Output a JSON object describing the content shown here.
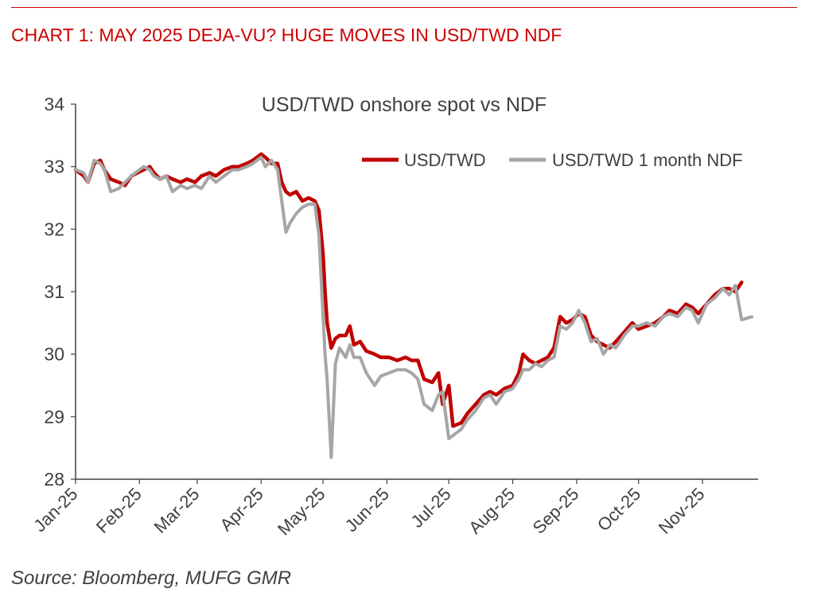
{
  "header": {
    "title": "CHART 1: MAY 2025 DEJA-VU? HUGE MOVES IN USD/TWD NDF"
  },
  "footer": {
    "source": "Source: Bloomberg, MUFG GMR"
  },
  "colors": {
    "accent": "#cc0000",
    "spot": "#c00000",
    "ndf": "#a6a6a6",
    "axis": "#404040"
  },
  "chart_data": {
    "type": "line",
    "title": "USD/TWD onshore spot vs NDF",
    "xlabel": "",
    "ylabel": "",
    "ylim": [
      28,
      34
    ],
    "yticks": [
      "28",
      "29",
      "30",
      "31",
      "32",
      "33",
      "34"
    ],
    "xlim": [
      "2025-01-01",
      "2025-11-28"
    ],
    "xticks": [
      {
        "label": "Jan-25",
        "date": "2025-01-01"
      },
      {
        "label": "Feb-25",
        "date": "2025-02-01"
      },
      {
        "label": "Mar-25",
        "date": "2025-03-01"
      },
      {
        "label": "Apr-25",
        "date": "2025-04-01"
      },
      {
        "label": "May-25",
        "date": "2025-05-01"
      },
      {
        "label": "Jun-25",
        "date": "2025-06-01"
      },
      {
        "label": "Jul-25",
        "date": "2025-07-01"
      },
      {
        "label": "Aug-25",
        "date": "2025-08-01"
      },
      {
        "label": "Sep-25",
        "date": "2025-09-01"
      },
      {
        "label": "Oct-25",
        "date": "2025-10-01"
      },
      {
        "label": "Nov-25",
        "date": "2025-11-01"
      }
    ],
    "grid": false,
    "legend": "top-right",
    "series": [
      {
        "name": "USD/TWD",
        "color": "#c00000",
        "points": [
          [
            "2025-01-01",
            32.95
          ],
          [
            "2025-01-05",
            32.85
          ],
          [
            "2025-01-07",
            32.75
          ],
          [
            "2025-01-10",
            33.05
          ],
          [
            "2025-01-13",
            33.1
          ],
          [
            "2025-01-15",
            32.95
          ],
          [
            "2025-01-18",
            32.8
          ],
          [
            "2025-01-22",
            32.75
          ],
          [
            "2025-01-25",
            32.7
          ],
          [
            "2025-01-28",
            32.85
          ],
          [
            "2025-02-03",
            32.95
          ],
          [
            "2025-02-06",
            33.0
          ],
          [
            "2025-02-08",
            32.9
          ],
          [
            "2025-02-11",
            32.8
          ],
          [
            "2025-02-14",
            32.85
          ],
          [
            "2025-02-17",
            32.8
          ],
          [
            "2025-02-21",
            32.75
          ],
          [
            "2025-02-24",
            32.8
          ],
          [
            "2025-02-28",
            32.75
          ],
          [
            "2025-03-03",
            32.85
          ],
          [
            "2025-03-07",
            32.9
          ],
          [
            "2025-03-10",
            32.85
          ],
          [
            "2025-03-14",
            32.95
          ],
          [
            "2025-03-18",
            33.0
          ],
          [
            "2025-03-21",
            33.0
          ],
          [
            "2025-03-25",
            33.05
          ],
          [
            "2025-03-28",
            33.1
          ],
          [
            "2025-04-01",
            33.2
          ],
          [
            "2025-04-03",
            33.15
          ],
          [
            "2025-04-06",
            33.05
          ],
          [
            "2025-04-09",
            33.05
          ],
          [
            "2025-04-11",
            32.75
          ],
          [
            "2025-04-13",
            32.6
          ],
          [
            "2025-04-15",
            32.55
          ],
          [
            "2025-04-18",
            32.6
          ],
          [
            "2025-04-21",
            32.45
          ],
          [
            "2025-04-24",
            32.5
          ],
          [
            "2025-04-27",
            32.45
          ],
          [
            "2025-04-29",
            32.3
          ],
          [
            "2025-05-01",
            31.6
          ],
          [
            "2025-05-02",
            31.0
          ],
          [
            "2025-05-03",
            30.5
          ],
          [
            "2025-05-05",
            30.1
          ],
          [
            "2025-05-07",
            30.25
          ],
          [
            "2025-05-09",
            30.3
          ],
          [
            "2025-05-12",
            30.3
          ],
          [
            "2025-05-14",
            30.45
          ],
          [
            "2025-05-16",
            30.15
          ],
          [
            "2025-05-19",
            30.2
          ],
          [
            "2025-05-22",
            30.05
          ],
          [
            "2025-05-26",
            30.0
          ],
          [
            "2025-05-29",
            29.95
          ],
          [
            "2025-06-02",
            29.95
          ],
          [
            "2025-06-06",
            29.9
          ],
          [
            "2025-06-10",
            29.95
          ],
          [
            "2025-06-13",
            29.9
          ],
          [
            "2025-06-16",
            29.9
          ],
          [
            "2025-06-19",
            29.6
          ],
          [
            "2025-06-23",
            29.55
          ],
          [
            "2025-06-26",
            29.7
          ],
          [
            "2025-06-28",
            29.2
          ],
          [
            "2025-07-01",
            29.5
          ],
          [
            "2025-07-03",
            28.85
          ],
          [
            "2025-07-07",
            28.9
          ],
          [
            "2025-07-10",
            29.05
          ],
          [
            "2025-07-14",
            29.2
          ],
          [
            "2025-07-18",
            29.35
          ],
          [
            "2025-07-21",
            29.4
          ],
          [
            "2025-07-24",
            29.35
          ],
          [
            "2025-07-28",
            29.45
          ],
          [
            "2025-08-01",
            29.5
          ],
          [
            "2025-08-04",
            29.7
          ],
          [
            "2025-08-06",
            30.0
          ],
          [
            "2025-08-09",
            29.9
          ],
          [
            "2025-08-12",
            29.85
          ],
          [
            "2025-08-15",
            29.9
          ],
          [
            "2025-08-18",
            29.95
          ],
          [
            "2025-08-21",
            30.1
          ],
          [
            "2025-08-24",
            30.6
          ],
          [
            "2025-08-27",
            30.5
          ],
          [
            "2025-08-30",
            30.55
          ],
          [
            "2025-09-02",
            30.65
          ],
          [
            "2025-09-05",
            30.6
          ],
          [
            "2025-09-08",
            30.3
          ],
          [
            "2025-09-11",
            30.2
          ],
          [
            "2025-09-14",
            30.15
          ],
          [
            "2025-09-17",
            30.1
          ],
          [
            "2025-09-20",
            30.2
          ],
          [
            "2025-09-24",
            30.35
          ],
          [
            "2025-09-28",
            30.5
          ],
          [
            "2025-10-01",
            30.4
          ],
          [
            "2025-10-05",
            30.45
          ],
          [
            "2025-10-09",
            30.5
          ],
          [
            "2025-10-13",
            30.6
          ],
          [
            "2025-10-16",
            30.7
          ],
          [
            "2025-10-20",
            30.65
          ],
          [
            "2025-10-24",
            30.8
          ],
          [
            "2025-10-27",
            30.75
          ],
          [
            "2025-10-30",
            30.65
          ],
          [
            "2025-11-03",
            30.8
          ],
          [
            "2025-11-07",
            30.95
          ],
          [
            "2025-11-11",
            31.05
          ],
          [
            "2025-11-14",
            31.05
          ],
          [
            "2025-11-17",
            31.0
          ],
          [
            "2025-11-20",
            31.15
          ]
        ]
      },
      {
        "name": "USD/TWD 1 month NDF",
        "color": "#a6a6a6",
        "points": [
          [
            "2025-01-01",
            32.95
          ],
          [
            "2025-01-05",
            32.9
          ],
          [
            "2025-01-07",
            32.75
          ],
          [
            "2025-01-10",
            33.1
          ],
          [
            "2025-01-13",
            33.05
          ],
          [
            "2025-01-15",
            32.95
          ],
          [
            "2025-01-18",
            32.6
          ],
          [
            "2025-01-22",
            32.65
          ],
          [
            "2025-01-25",
            32.75
          ],
          [
            "2025-01-28",
            32.85
          ],
          [
            "2025-02-03",
            33.0
          ],
          [
            "2025-02-06",
            32.95
          ],
          [
            "2025-02-08",
            32.85
          ],
          [
            "2025-02-11",
            32.8
          ],
          [
            "2025-02-14",
            32.85
          ],
          [
            "2025-02-17",
            32.6
          ],
          [
            "2025-02-21",
            32.7
          ],
          [
            "2025-02-24",
            32.65
          ],
          [
            "2025-02-28",
            32.7
          ],
          [
            "2025-03-03",
            32.65
          ],
          [
            "2025-03-07",
            32.85
          ],
          [
            "2025-03-10",
            32.75
          ],
          [
            "2025-03-14",
            32.85
          ],
          [
            "2025-03-18",
            32.95
          ],
          [
            "2025-03-21",
            32.95
          ],
          [
            "2025-03-25",
            33.0
          ],
          [
            "2025-03-28",
            33.05
          ],
          [
            "2025-04-01",
            33.15
          ],
          [
            "2025-04-03",
            33.0
          ],
          [
            "2025-04-06",
            33.1
          ],
          [
            "2025-04-09",
            32.95
          ],
          [
            "2025-04-11",
            32.45
          ],
          [
            "2025-04-13",
            31.95
          ],
          [
            "2025-04-15",
            32.1
          ],
          [
            "2025-04-18",
            32.25
          ],
          [
            "2025-04-21",
            32.35
          ],
          [
            "2025-04-24",
            32.4
          ],
          [
            "2025-04-27",
            32.4
          ],
          [
            "2025-04-29",
            31.9
          ],
          [
            "2025-05-01",
            30.6
          ],
          [
            "2025-05-02",
            30.0
          ],
          [
            "2025-05-03",
            29.6
          ],
          [
            "2025-05-05",
            28.35
          ],
          [
            "2025-05-07",
            29.85
          ],
          [
            "2025-05-09",
            30.1
          ],
          [
            "2025-05-12",
            29.95
          ],
          [
            "2025-05-14",
            30.15
          ],
          [
            "2025-05-16",
            29.95
          ],
          [
            "2025-05-19",
            29.95
          ],
          [
            "2025-05-22",
            29.7
          ],
          [
            "2025-05-26",
            29.5
          ],
          [
            "2025-05-29",
            29.65
          ],
          [
            "2025-06-02",
            29.7
          ],
          [
            "2025-06-06",
            29.75
          ],
          [
            "2025-06-10",
            29.75
          ],
          [
            "2025-06-13",
            29.7
          ],
          [
            "2025-06-16",
            29.6
          ],
          [
            "2025-06-19",
            29.2
          ],
          [
            "2025-06-23",
            29.1
          ],
          [
            "2025-06-26",
            29.35
          ],
          [
            "2025-06-28",
            29.4
          ],
          [
            "2025-07-01",
            28.65
          ],
          [
            "2025-07-03",
            28.7
          ],
          [
            "2025-07-07",
            28.8
          ],
          [
            "2025-07-10",
            28.95
          ],
          [
            "2025-07-14",
            29.1
          ],
          [
            "2025-07-18",
            29.3
          ],
          [
            "2025-07-21",
            29.35
          ],
          [
            "2025-07-24",
            29.2
          ],
          [
            "2025-07-28",
            29.4
          ],
          [
            "2025-08-01",
            29.45
          ],
          [
            "2025-08-04",
            29.6
          ],
          [
            "2025-08-06",
            29.75
          ],
          [
            "2025-08-09",
            29.75
          ],
          [
            "2025-08-12",
            29.85
          ],
          [
            "2025-08-15",
            29.8
          ],
          [
            "2025-08-18",
            29.9
          ],
          [
            "2025-08-21",
            29.95
          ],
          [
            "2025-08-24",
            30.45
          ],
          [
            "2025-08-27",
            30.4
          ],
          [
            "2025-08-30",
            30.5
          ],
          [
            "2025-09-02",
            30.7
          ],
          [
            "2025-09-05",
            30.5
          ],
          [
            "2025-09-08",
            30.2
          ],
          [
            "2025-09-11",
            30.25
          ],
          [
            "2025-09-14",
            30.0
          ],
          [
            "2025-09-17",
            30.15
          ],
          [
            "2025-09-20",
            30.1
          ],
          [
            "2025-09-24",
            30.3
          ],
          [
            "2025-09-28",
            30.45
          ],
          [
            "2025-10-01",
            30.45
          ],
          [
            "2025-10-05",
            30.5
          ],
          [
            "2025-10-09",
            30.45
          ],
          [
            "2025-10-13",
            30.6
          ],
          [
            "2025-10-16",
            30.65
          ],
          [
            "2025-10-20",
            30.6
          ],
          [
            "2025-10-24",
            30.75
          ],
          [
            "2025-10-27",
            30.7
          ],
          [
            "2025-10-30",
            30.5
          ],
          [
            "2025-11-03",
            30.8
          ],
          [
            "2025-11-07",
            30.9
          ],
          [
            "2025-11-11",
            31.05
          ],
          [
            "2025-11-14",
            30.95
          ],
          [
            "2025-11-17",
            31.1
          ],
          [
            "2025-11-20",
            30.55
          ],
          [
            "2025-11-25",
            30.6
          ]
        ]
      }
    ]
  }
}
